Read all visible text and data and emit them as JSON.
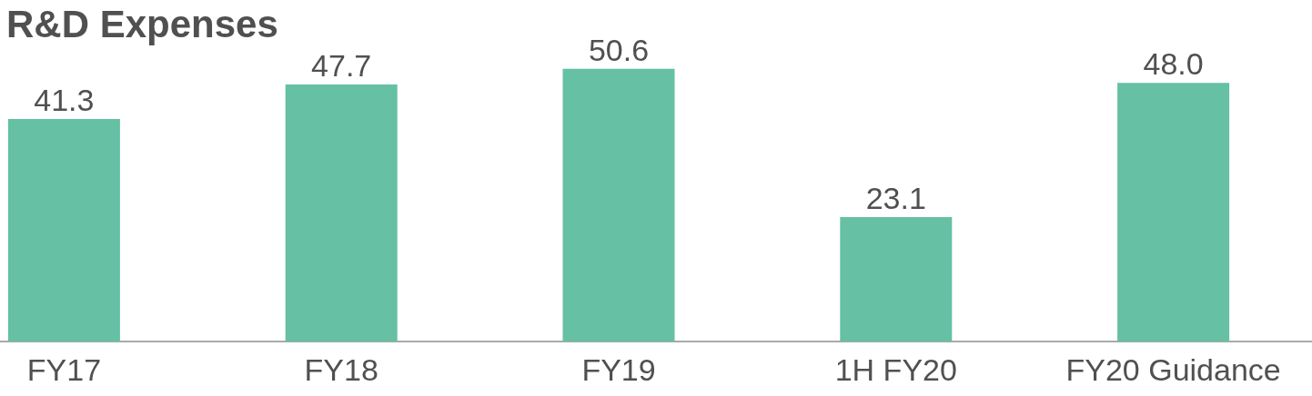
{
  "chart_data": {
    "type": "bar",
    "title": "R&D Expenses",
    "categories": [
      "FY17",
      "FY18",
      "FY19",
      "1H FY20",
      "FY20 Guidance"
    ],
    "values": [
      41.3,
      47.7,
      50.6,
      23.1,
      48.0
    ],
    "color": "#65c0a4",
    "value_labels": [
      "41.3",
      "47.7",
      "50.6",
      "23.1",
      "48.0"
    ]
  }
}
